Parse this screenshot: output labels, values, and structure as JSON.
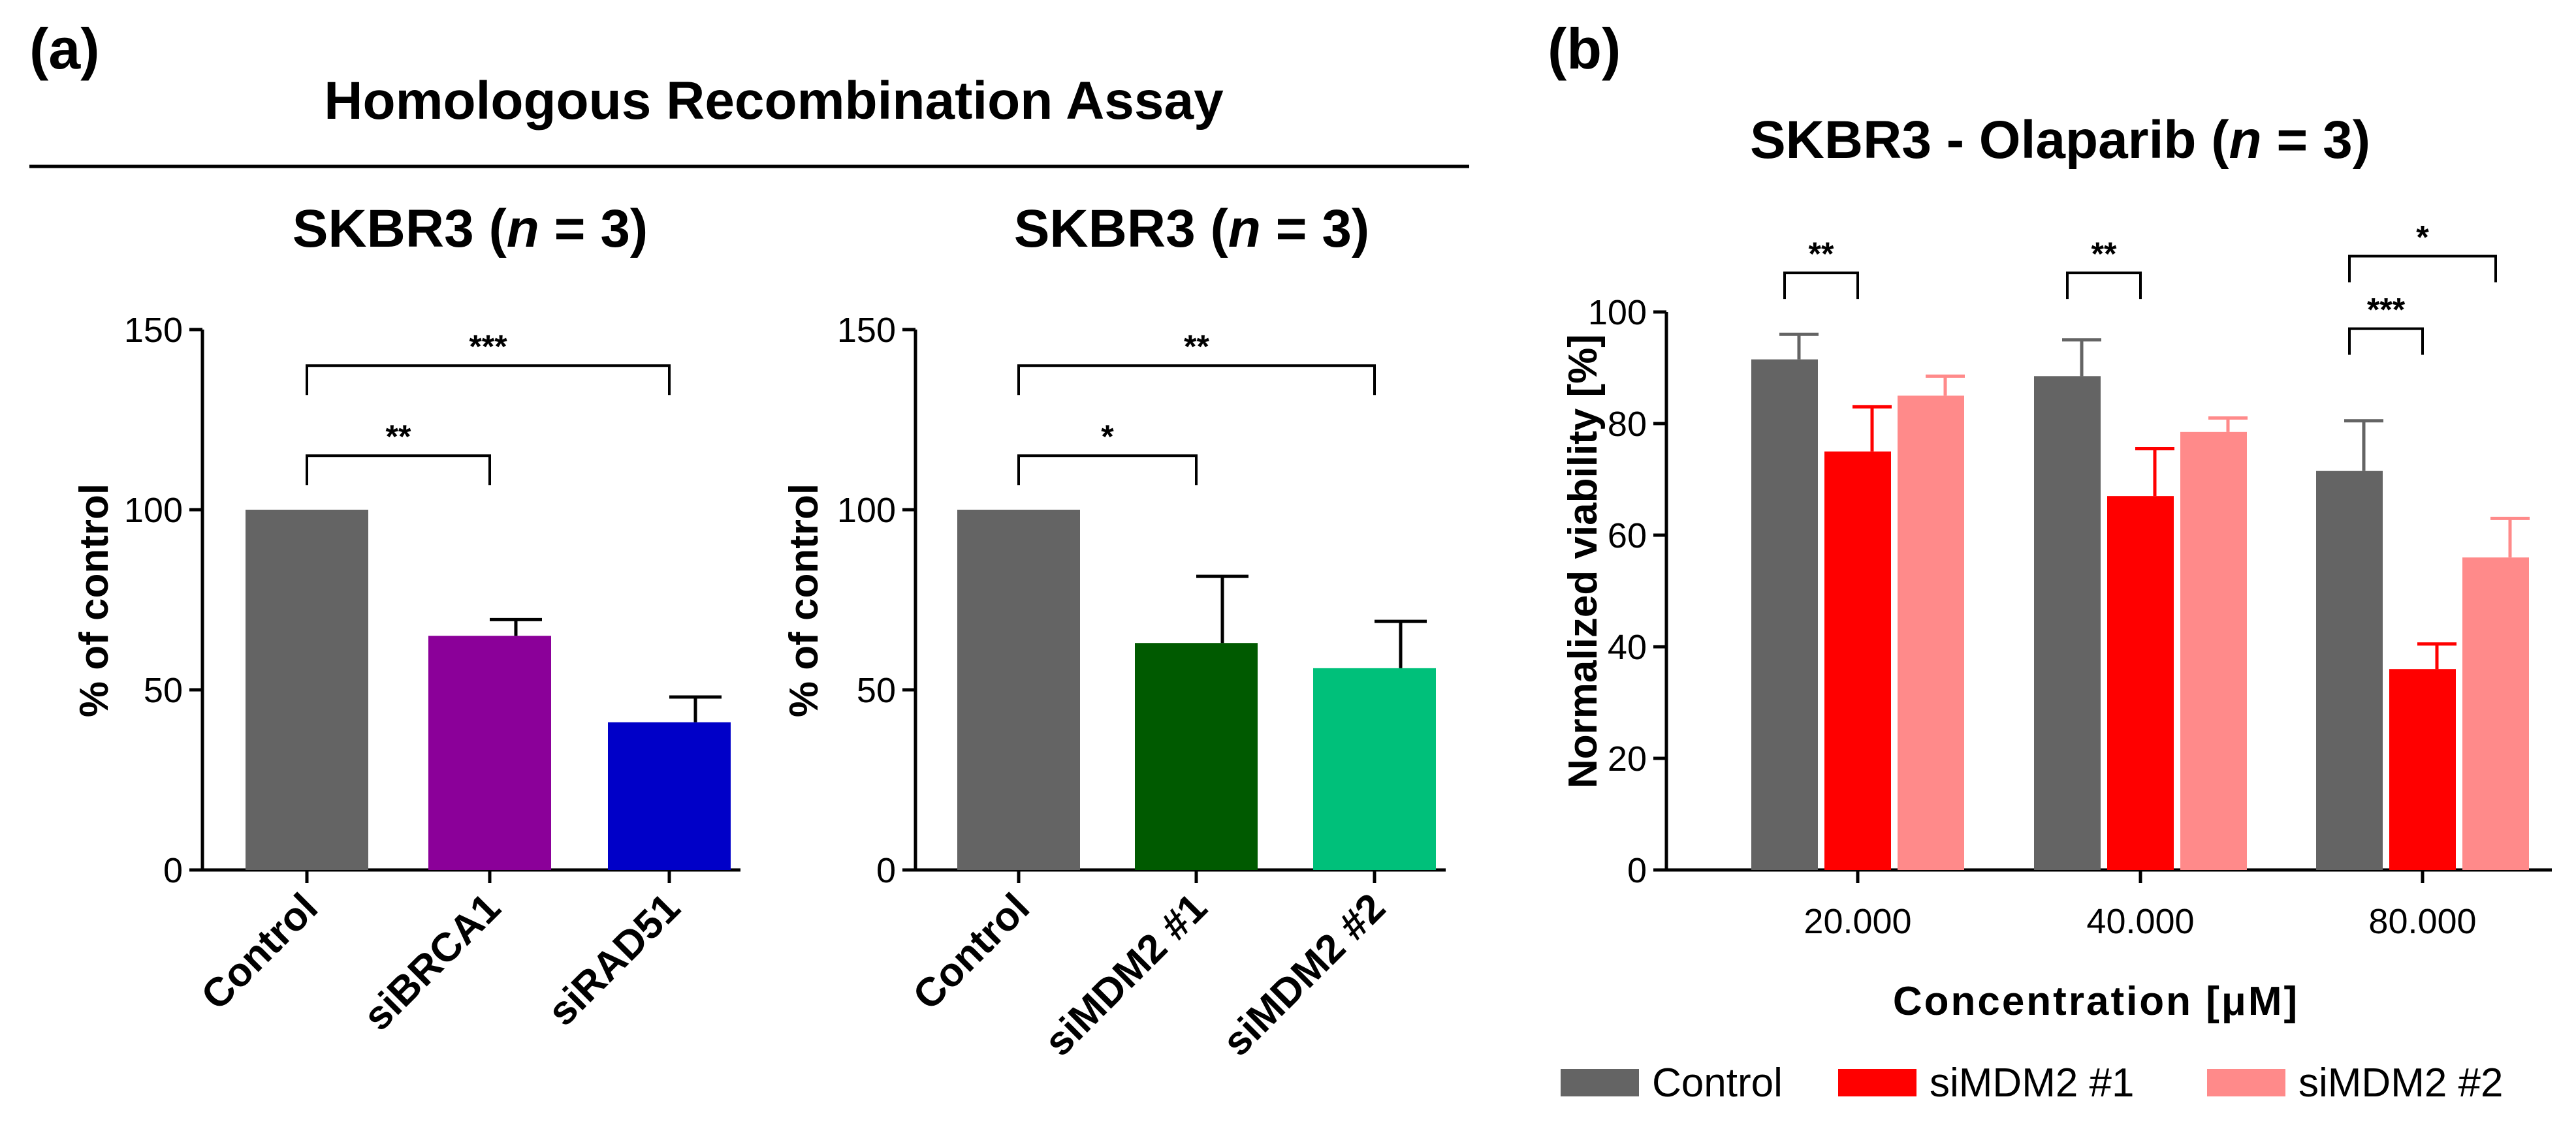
{
  "figure": {
    "panel_a_label": "(a)",
    "panel_b_label": "(b)",
    "panel_a_header": "Homologous Recombination Assay"
  },
  "colors": {
    "control": "#646464",
    "siBRCA1": "#8b0099",
    "siRAD51": "#0000c8",
    "siMDM2_1_dark": "#005a00",
    "siMDM2_2_green": "#00c07a",
    "siMDM2_1_red": "#ff0000",
    "siMDM2_2_pink": "#ff8a8a"
  },
  "chart_data": [
    {
      "id": "a1",
      "type": "bar",
      "title_prefix": "SKBR3 (",
      "title_n": "n",
      "title_suffix": " = 3)",
      "xlabel": "",
      "ylabel": "% of control",
      "ylim": [
        0,
        150
      ],
      "yticks": [
        "0",
        "50",
        "100",
        "150"
      ],
      "categories": [
        "Control",
        "siBRCA1",
        "siRAD51"
      ],
      "values": [
        100,
        65,
        41
      ],
      "errors": [
        0,
        4.5,
        7
      ],
      "bar_colors": [
        "#646464",
        "#8b0099",
        "#0000c8"
      ],
      "significance": [
        {
          "from": 0,
          "to": 1,
          "label": "**",
          "y": 115
        },
        {
          "from": 0,
          "to": 2,
          "label": "***",
          "y": 140
        }
      ]
    },
    {
      "id": "a2",
      "type": "bar",
      "title_prefix": "SKBR3 (",
      "title_n": "n",
      "title_suffix": " = 3)",
      "xlabel": "",
      "ylabel": "% of control",
      "ylim": [
        0,
        150
      ],
      "yticks": [
        "0",
        "50",
        "100",
        "150"
      ],
      "categories": [
        "Control",
        "siMDM2 #1",
        "siMDM2 #2"
      ],
      "values": [
        100,
        63,
        56
      ],
      "errors": [
        0,
        18.5,
        13
      ],
      "bar_colors": [
        "#646464",
        "#005a00",
        "#00c07a"
      ],
      "significance": [
        {
          "from": 0,
          "to": 1,
          "label": "*",
          "y": 115
        },
        {
          "from": 0,
          "to": 2,
          "label": "**",
          "y": 140
        }
      ]
    },
    {
      "id": "b",
      "type": "bar",
      "title_prefix": "SKBR3 - Olaparib (",
      "title_n": "n",
      "title_suffix": " = 3)",
      "xlabel": "Concentration [μM]",
      "ylabel": "Normalized viability [%]",
      "ylim": [
        0,
        100
      ],
      "yticks": [
        "0",
        "20",
        "40",
        "60",
        "80",
        "100"
      ],
      "categories": [
        "20.000",
        "40.000",
        "80.000"
      ],
      "series": [
        {
          "name": "Control",
          "color": "#646464",
          "values": [
            91.5,
            88.5,
            71.5
          ],
          "errors": [
            4.5,
            6.5,
            9
          ]
        },
        {
          "name": "siMDM2 #1",
          "color": "#ff0000",
          "values": [
            75,
            67,
            36
          ],
          "errors": [
            8,
            8.5,
            4.5
          ]
        },
        {
          "name": "siMDM2 #2",
          "color": "#ff8a8a",
          "values": [
            85,
            78.5,
            56
          ],
          "errors": [
            3.5,
            2.5,
            7
          ]
        }
      ],
      "significance": [
        {
          "group": 0,
          "from": 0,
          "to": 1,
          "label": "**",
          "y": 107
        },
        {
          "group": 1,
          "from": 0,
          "to": 1,
          "label": "**",
          "y": 107
        },
        {
          "group": 2,
          "from": 0,
          "to": 1,
          "label": "***",
          "y": 97
        },
        {
          "group": 2,
          "from": 0,
          "to": 2,
          "label": "*",
          "y": 110
        }
      ],
      "legend": [
        "Control",
        "siMDM2 #1",
        "siMDM2 #2"
      ]
    }
  ]
}
